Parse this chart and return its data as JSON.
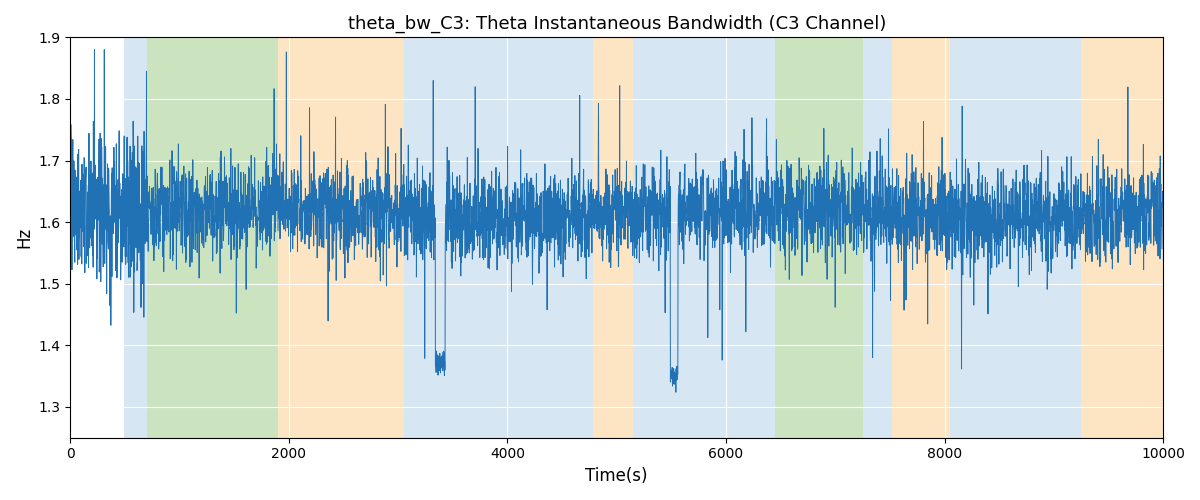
{
  "title": "theta_bw_C3: Theta Instantaneous Bandwidth (C3 Channel)",
  "xlabel": "Time(s)",
  "ylabel": "Hz",
  "xlim": [
    0,
    10000
  ],
  "ylim": [
    1.25,
    1.9
  ],
  "yticks": [
    1.3,
    1.4,
    1.5,
    1.6,
    1.7,
    1.8,
    1.9
  ],
  "xticks": [
    0,
    2000,
    4000,
    6000,
    8000,
    10000
  ],
  "line_color": "#2171b5",
  "line_width": 0.7,
  "bg_regions": [
    {
      "xmin": 490,
      "xmax": 700,
      "color": "#c6dcef",
      "alpha": 0.7
    },
    {
      "xmin": 700,
      "xmax": 1900,
      "color": "#b5d9a5",
      "alpha": 0.7
    },
    {
      "xmin": 1900,
      "xmax": 3050,
      "color": "#fdd9a8",
      "alpha": 0.7
    },
    {
      "xmin": 3050,
      "xmax": 3360,
      "color": "#c6dcef",
      "alpha": 0.7
    },
    {
      "xmin": 3360,
      "xmax": 4780,
      "color": "#c6dcef",
      "alpha": 0.7
    },
    {
      "xmin": 4780,
      "xmax": 5150,
      "color": "#fdd9a8",
      "alpha": 0.7
    },
    {
      "xmin": 5150,
      "xmax": 6200,
      "color": "#c6dcef",
      "alpha": 0.7
    },
    {
      "xmin": 6200,
      "xmax": 6450,
      "color": "#c6dcef",
      "alpha": 0.7
    },
    {
      "xmin": 6450,
      "xmax": 7250,
      "color": "#b5d9a5",
      "alpha": 0.7
    },
    {
      "xmin": 7250,
      "xmax": 7520,
      "color": "#c6dcef",
      "alpha": 0.7
    },
    {
      "xmin": 7520,
      "xmax": 8050,
      "color": "#fdd9a8",
      "alpha": 0.7
    },
    {
      "xmin": 8050,
      "xmax": 9250,
      "color": "#c6dcef",
      "alpha": 0.7
    },
    {
      "xmin": 9250,
      "xmax": 10000,
      "color": "#fdd9a8",
      "alpha": 0.7
    }
  ]
}
